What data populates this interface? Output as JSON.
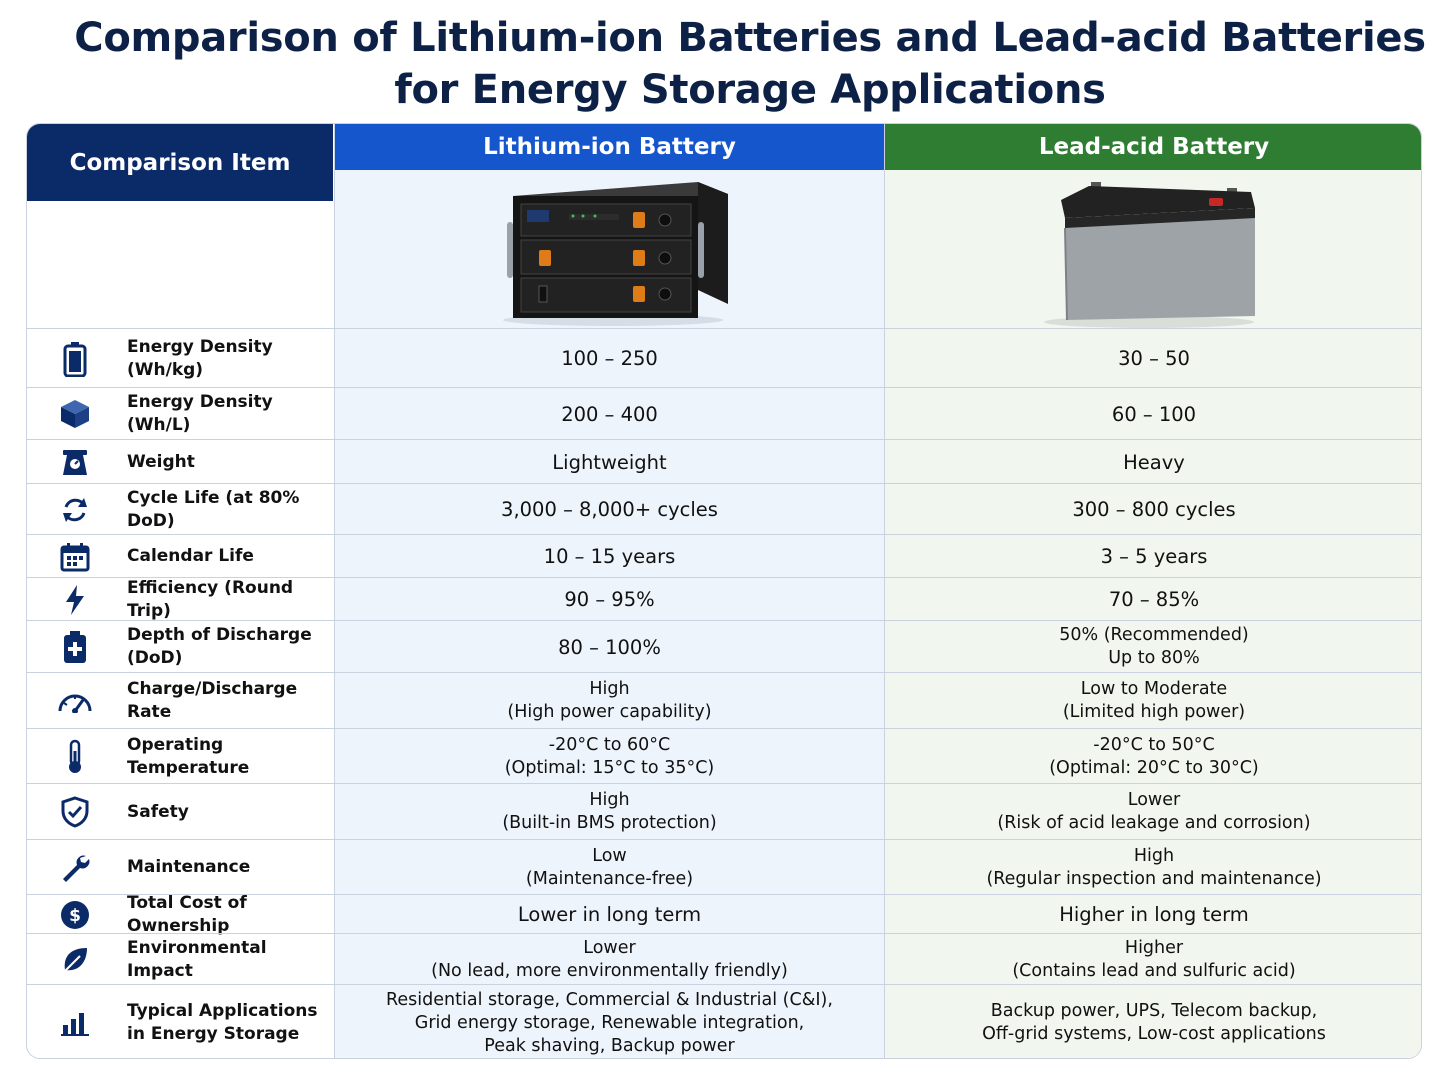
{
  "title": {
    "line1": "Comparison of Lithium-ion Batteries and Lead-acid Batteries",
    "line2": "for Energy Storage Applications"
  },
  "header": {
    "item": "Comparison Item",
    "lithium": "Lithium-ion Battery",
    "lead": "Lead-acid Battery"
  },
  "colors": {
    "navy": "#0b2a68",
    "blue": "#1556cc",
    "green": "#2f7d32",
    "title": "#0d2146"
  },
  "rows": [
    {
      "icon": "battery-icon",
      "label": "Energy Density (Wh/kg)",
      "lithium": [
        "100 – 250"
      ],
      "lead": [
        "30 – 50"
      ]
    },
    {
      "icon": "cube-icon",
      "label": "Energy Density (Wh/L)",
      "lithium": [
        "200 – 400"
      ],
      "lead": [
        "60 – 100"
      ]
    },
    {
      "icon": "scale-icon",
      "label": "Weight",
      "lithium": [
        "Lightweight"
      ],
      "lead": [
        "Heavy"
      ]
    },
    {
      "icon": "cycle-icon",
      "label": "Cycle Life (at 80% DoD)",
      "lithium": [
        "3,000 – 8,000+ cycles"
      ],
      "lead": [
        "300 – 800 cycles"
      ]
    },
    {
      "icon": "calendar-icon",
      "label": "Calendar Life",
      "lithium": [
        "10 – 15 years"
      ],
      "lead": [
        "3 – 5 years"
      ]
    },
    {
      "icon": "lightning-icon",
      "label": "Efficiency (Round Trip)",
      "lithium": [
        "90 – 95%"
      ],
      "lead": [
        "70 – 85%"
      ]
    },
    {
      "icon": "battery-plus-icon",
      "label": "Depth of Discharge (DoD)",
      "lithium": [
        "80 – 100%"
      ],
      "lead": [
        "50% (Recommended)",
        "Up to 80%"
      ]
    },
    {
      "icon": "gauge-icon",
      "label": "Charge/Discharge Rate",
      "lithium": [
        "High",
        "(High power capability)"
      ],
      "lead": [
        "Low to Moderate",
        "(Limited high power)"
      ]
    },
    {
      "icon": "thermometer-icon",
      "label": "Operating Temperature",
      "lithium": [
        "-20°C to 60°C",
        "(Optimal: 15°C to 35°C)"
      ],
      "lead": [
        "-20°C to 50°C",
        "(Optimal: 20°C to 30°C)"
      ]
    },
    {
      "icon": "shield-check-icon",
      "label": "Safety",
      "lithium": [
        "High",
        "(Built-in BMS protection)"
      ],
      "lead": [
        "Lower",
        "(Risk of acid leakage and corrosion)"
      ]
    },
    {
      "icon": "wrench-icon",
      "label": "Maintenance",
      "lithium": [
        "Low",
        "(Maintenance-free)"
      ],
      "lead": [
        "High",
        "(Regular inspection and maintenance)"
      ]
    },
    {
      "icon": "dollar-icon",
      "label": "Total Cost of Ownership",
      "lithium": [
        "Lower in long term"
      ],
      "lead": [
        "Higher in long term"
      ]
    },
    {
      "icon": "leaf-icon",
      "label": "Environmental Impact",
      "lithium": [
        "Lower",
        "(No lead, more environmentally friendly)"
      ],
      "lead": [
        "Higher",
        "(Contains lead and sulfuric acid)"
      ]
    },
    {
      "icon": "bar-chart-icon",
      "label": "Typical Applications in Energy Storage",
      "lithium": [
        "Residential storage, Commercial & Industrial (C&I),",
        "Grid energy storage, Renewable integration,",
        "Peak shaving, Backup power"
      ],
      "lead": [
        "Backup power, UPS, Telecom backup,",
        "Off-grid systems, Low-cost applications"
      ]
    }
  ]
}
